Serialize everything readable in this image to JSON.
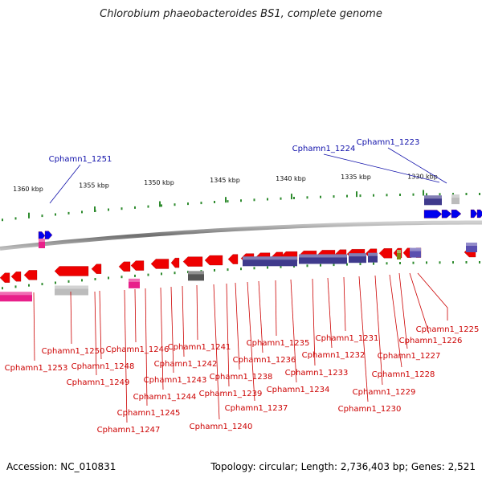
{
  "title": "Chlorobium phaeobacteroides BS1, complete genome",
  "footer": {
    "accession": "Accession: NC_010831",
    "topology": "Topology: circular; Length: 2,736,403 bp; Genes: 2,521"
  },
  "colors": {
    "backbone": "#8c8c8c",
    "forward_gene": "#0000ee",
    "reverse_gene": "#ee0000",
    "tick": "#2e8b2e",
    "blue_label": "#1010aa",
    "red_label": "#cc0000"
  },
  "scale_labels": [
    "1360 kbp",
    "1355 kbp",
    "1350 kbp",
    "1345 kbp",
    "1340 kbp",
    "1335 kbp",
    "1330 kbp"
  ],
  "forward_genes": [
    "Cphamn1_1251",
    "Cphamn1_1224",
    "Cphamn1_1223"
  ],
  "reverse_genes": [
    "Cphamn1_1225",
    "Cphamn1_1226",
    "Cphamn1_1227",
    "Cphamn1_1228",
    "Cphamn1_1229",
    "Cphamn1_1230",
    "Cphamn1_1231",
    "Cphamn1_1232",
    "Cphamn1_1233",
    "Cphamn1_1234",
    "Cphamn1_1235",
    "Cphamn1_1236",
    "Cphamn1_1237",
    "Cphamn1_1238",
    "Cphamn1_1239",
    "Cphamn1_1240",
    "Cphamn1_1241",
    "Cphamn1_1242",
    "Cphamn1_1243",
    "Cphamn1_1244",
    "Cphamn1_1245",
    "Cphamn1_1246",
    "Cphamn1_1247",
    "Cphamn1_1248",
    "Cphamn1_1249",
    "Cphamn1_1250",
    "Cphamn1_1253"
  ]
}
